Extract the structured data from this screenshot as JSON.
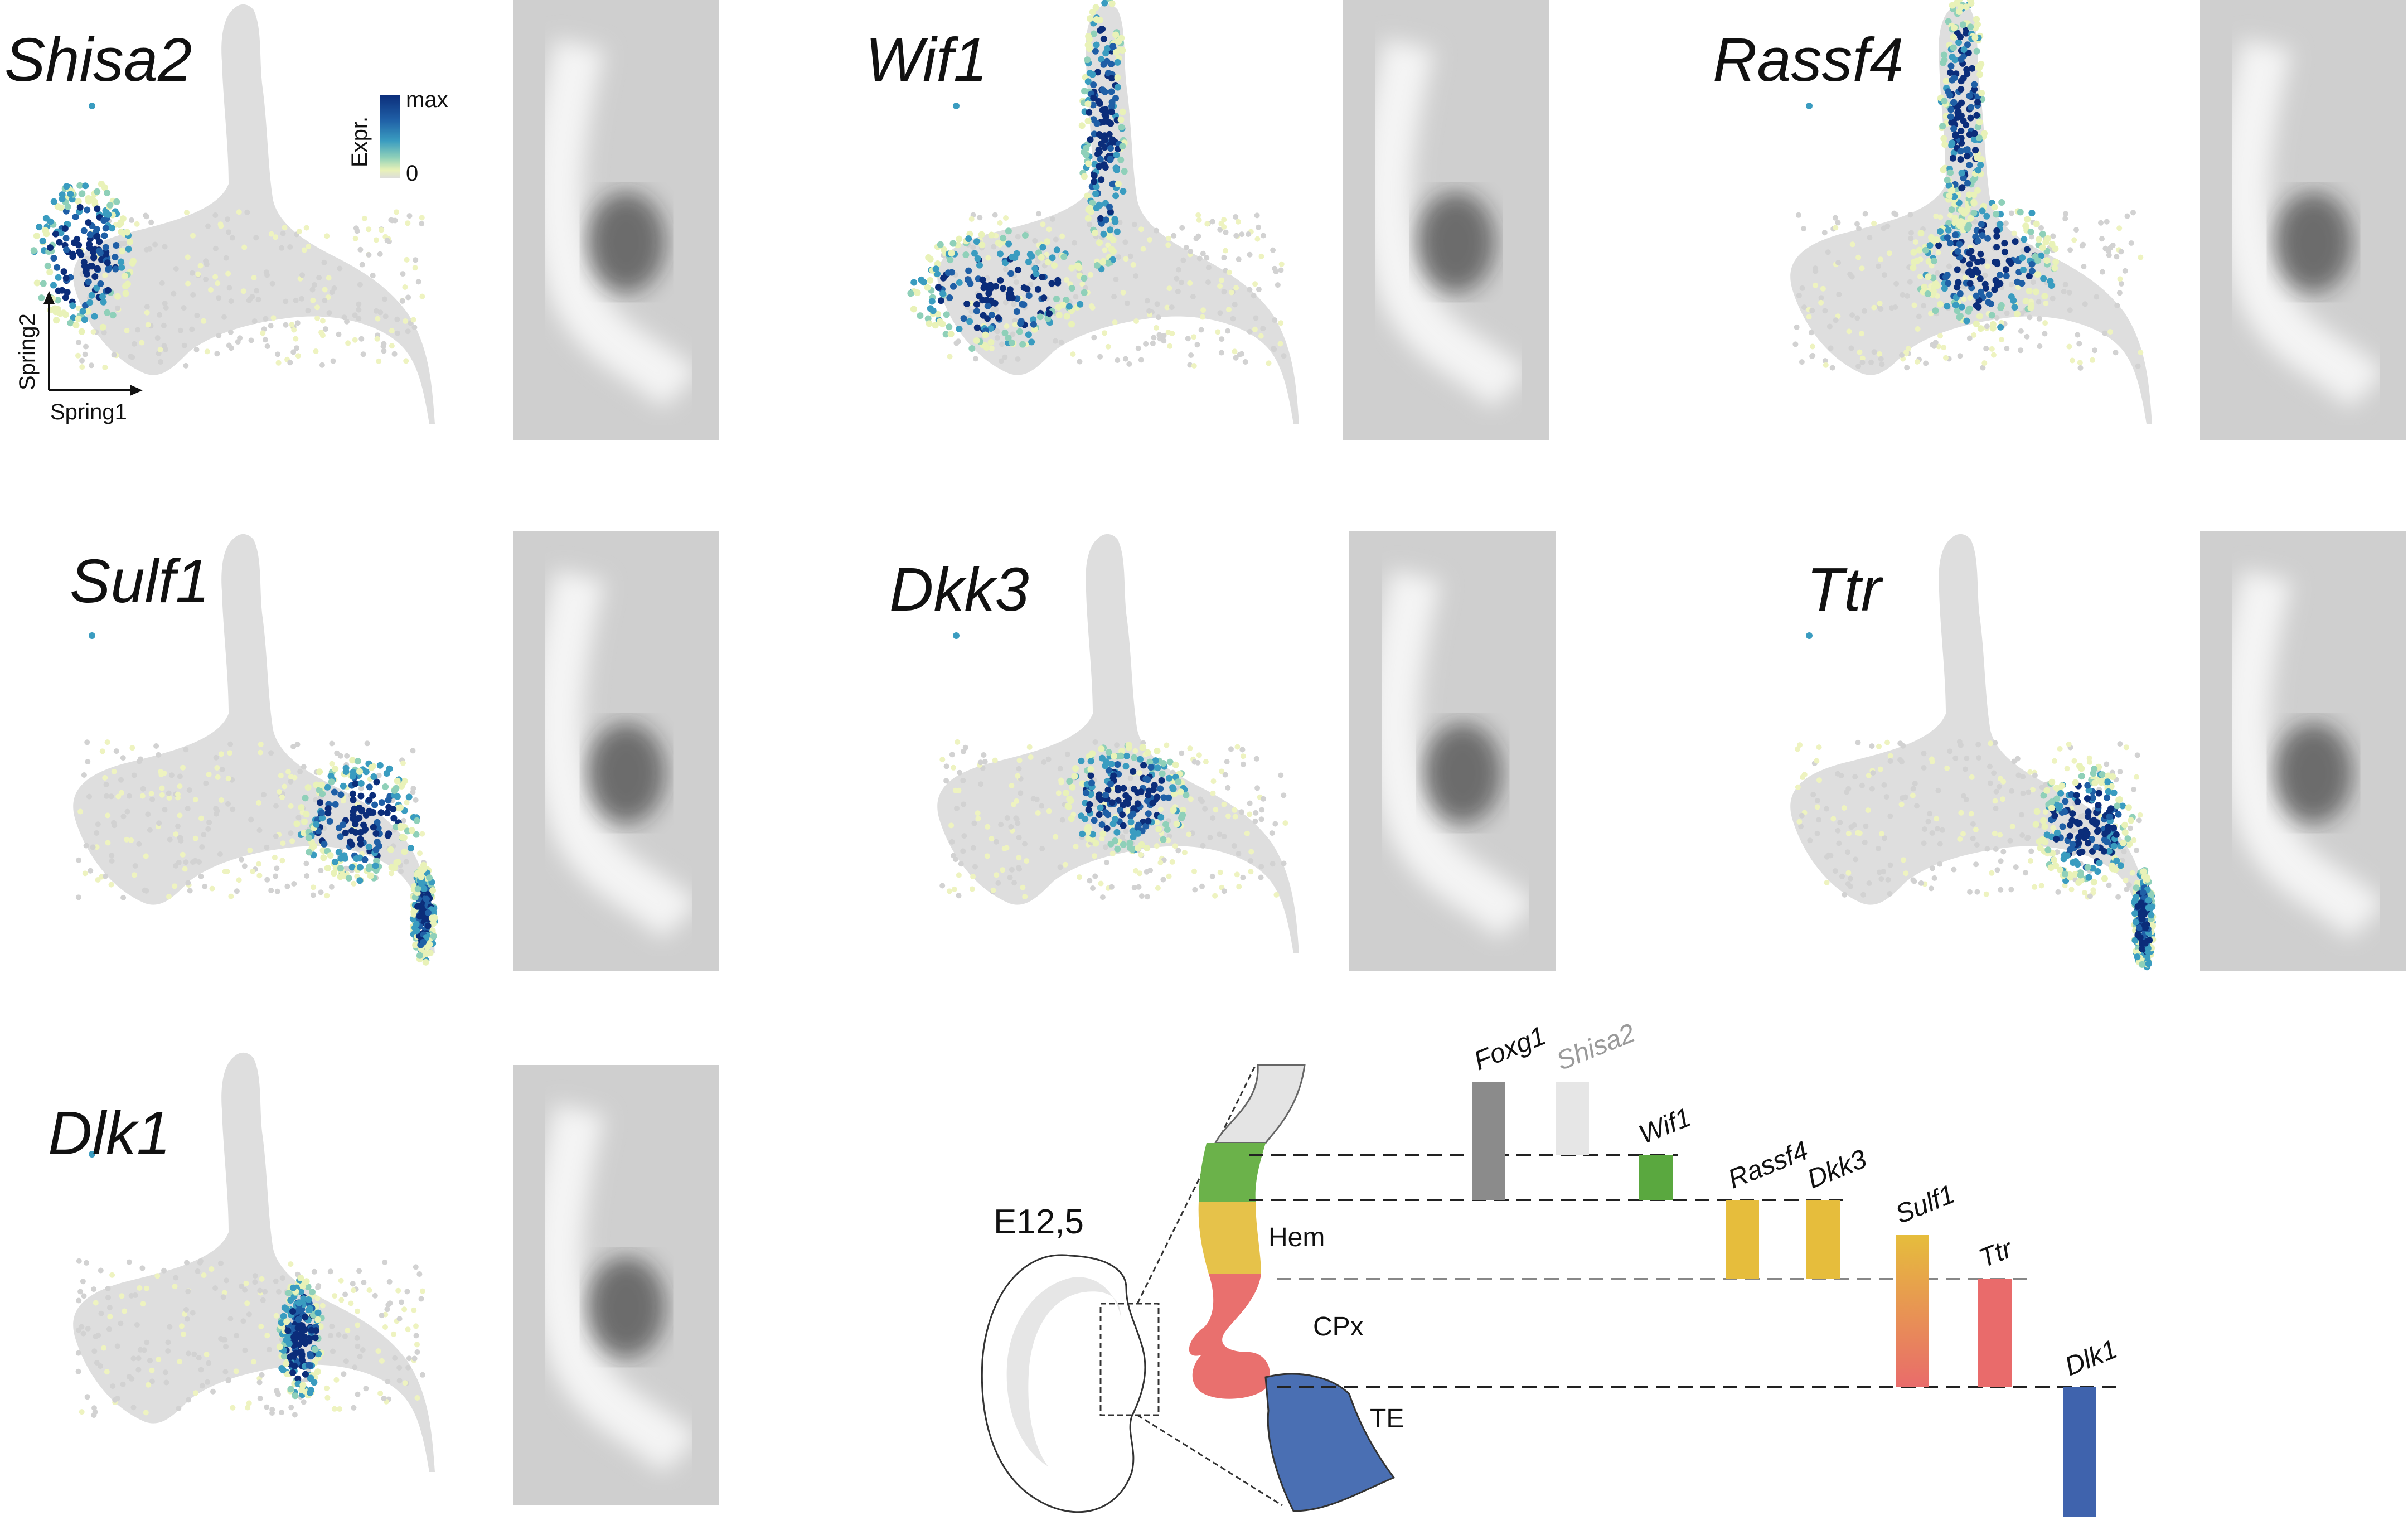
{
  "panels": [
    {
      "gene": "Shisa2",
      "pattern": "hem-left"
    },
    {
      "gene": "Wif1",
      "pattern": "hem-wide"
    },
    {
      "gene": "Rassf4",
      "pattern": "center"
    },
    {
      "gene": "Sulf1",
      "pattern": "right"
    },
    {
      "gene": "Dkk3",
      "pattern": "center-small"
    },
    {
      "gene": "Ttr",
      "pattern": "right-tail"
    },
    {
      "gene": "Dlk1",
      "pattern": "band"
    }
  ],
  "legend": {
    "title": "Expr.",
    "max_label": "max",
    "min_label": "0",
    "axis_x": "Spring1",
    "axis_y": "Spring2",
    "colors": [
      "#0b2d7a",
      "#1f5fa6",
      "#3a9cc0",
      "#8fd0b9",
      "#e9f2b8",
      "#dcdcdc"
    ]
  },
  "schematic": {
    "age": "E12,5",
    "regions": [
      "Hem",
      "CPx",
      "TE"
    ],
    "region_colors": {
      "green": "#6bb24a",
      "yellow": "#e6c24a",
      "red": "#e9706e",
      "blue": "#4a6fb3",
      "grey": "#e4e4e4"
    },
    "markers": [
      {
        "gene": "Foxg1",
        "color": "#8b8b8b"
      },
      {
        "gene": "Shisa2",
        "color": "#e6e6e6"
      },
      {
        "gene": "Wif1",
        "color": "#5aa83f"
      },
      {
        "gene": "Rassf4",
        "color": "#e6bd3c"
      },
      {
        "gene": "Dkk3",
        "color": "#e6bd3c"
      },
      {
        "gene": "Sulf1",
        "color": "gradient"
      },
      {
        "gene": "Ttr",
        "color": "#e96b6b"
      },
      {
        "gene": "Dlk1",
        "color": "#3f63ad"
      }
    ]
  }
}
